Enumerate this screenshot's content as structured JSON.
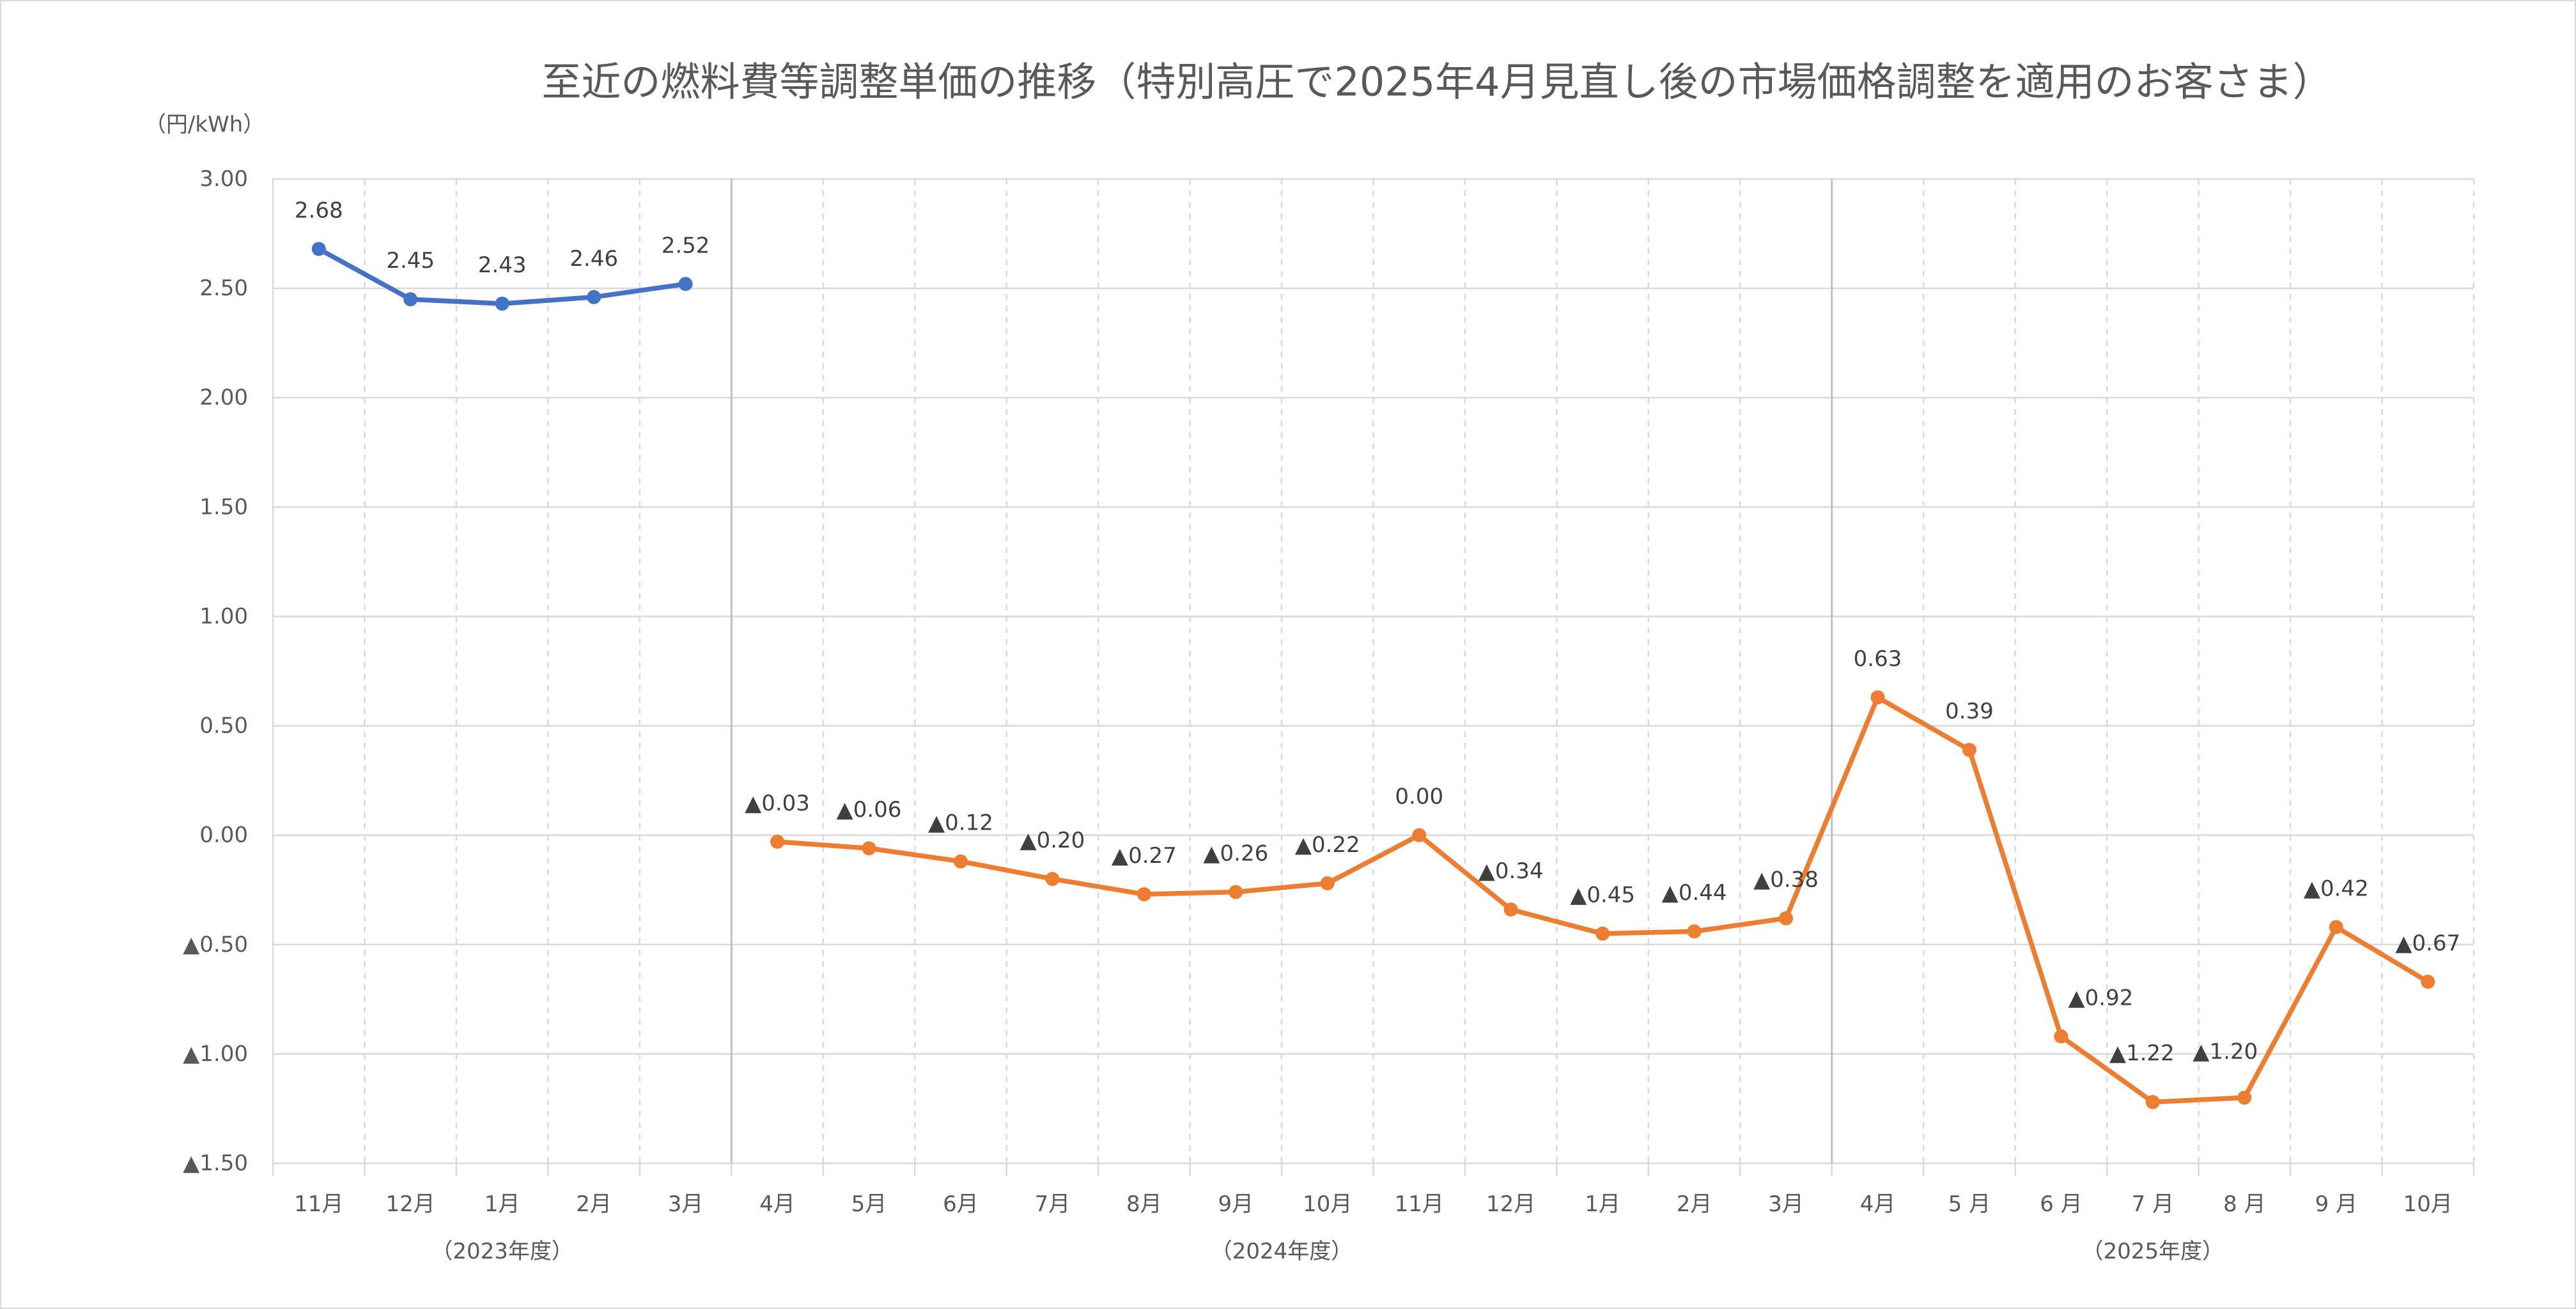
{
  "chart_data": {
    "type": "line",
    "title": "至近の燃料費等調整単価の推移（特別高圧で2025年4月見直し後の市場価格調整を適用のお客さま）",
    "ylabel": "（円/kWh）",
    "ylim": [
      -1.5,
      3.0
    ],
    "yticks": [
      {
        "value": 3.0,
        "label": "3.00"
      },
      {
        "value": 2.5,
        "label": "2.50"
      },
      {
        "value": 2.0,
        "label": "2.00"
      },
      {
        "value": 1.5,
        "label": "1.50"
      },
      {
        "value": 1.0,
        "label": "1.00"
      },
      {
        "value": 0.5,
        "label": "0.50"
      },
      {
        "value": 0.0,
        "label": "0.00"
      },
      {
        "value": -0.5,
        "label": "▲0.50"
      },
      {
        "value": -1.0,
        "label": "▲1.00"
      },
      {
        "value": -1.5,
        "label": "▲1.50"
      }
    ],
    "groups": [
      {
        "label": "（2023年度）",
        "categories": [
          "11月",
          "12月",
          "1月",
          "2月",
          "3月"
        ]
      },
      {
        "label": "（2024年度）",
        "categories": [
          "4月",
          "5月",
          "6月",
          "7月",
          "8月",
          "9月",
          "10月",
          "11月",
          "12月",
          "1月",
          "2月",
          "3月"
        ]
      },
      {
        "label": "（2025年度）",
        "categories": [
          "4月",
          "5 月",
          "6 月",
          "7 月",
          "8 月",
          "9 月",
          "10月"
        ]
      }
    ],
    "series": [
      {
        "color": "#4472C4",
        "values": [
          2.68,
          2.45,
          2.43,
          2.46,
          2.52,
          null,
          null,
          null,
          null,
          null,
          null,
          null,
          null,
          null,
          null,
          null,
          null,
          null,
          null,
          null,
          null,
          null,
          null,
          null
        ],
        "labels": [
          "2.68",
          "2.45",
          "2.43",
          "2.46",
          "2.52",
          null,
          null,
          null,
          null,
          null,
          null,
          null,
          null,
          null,
          null,
          null,
          null,
          null,
          null,
          null,
          null,
          null,
          null,
          null
        ]
      },
      {
        "color": "#ED7D31",
        "values": [
          null,
          null,
          null,
          null,
          null,
          -0.03,
          -0.06,
          -0.12,
          -0.2,
          -0.27,
          -0.26,
          -0.22,
          0.0,
          -0.34,
          -0.45,
          -0.44,
          -0.38,
          0.63,
          0.39,
          -0.92,
          -1.22,
          -1.2,
          -0.42,
          -0.67
        ],
        "labels": [
          null,
          null,
          null,
          null,
          null,
          "▲0.03",
          "▲0.06",
          "▲0.12",
          "▲0.20",
          "▲0.27",
          "▲0.26",
          "▲0.22",
          "0.00",
          "▲0.34",
          "▲0.45",
          "▲0.44",
          "▲0.38",
          "0.63",
          "0.39",
          "▲0.92",
          "▲1.22",
          "▲1.20",
          "▲0.42",
          "▲0.67"
        ]
      }
    ],
    "grid": true,
    "legend": "none"
  }
}
